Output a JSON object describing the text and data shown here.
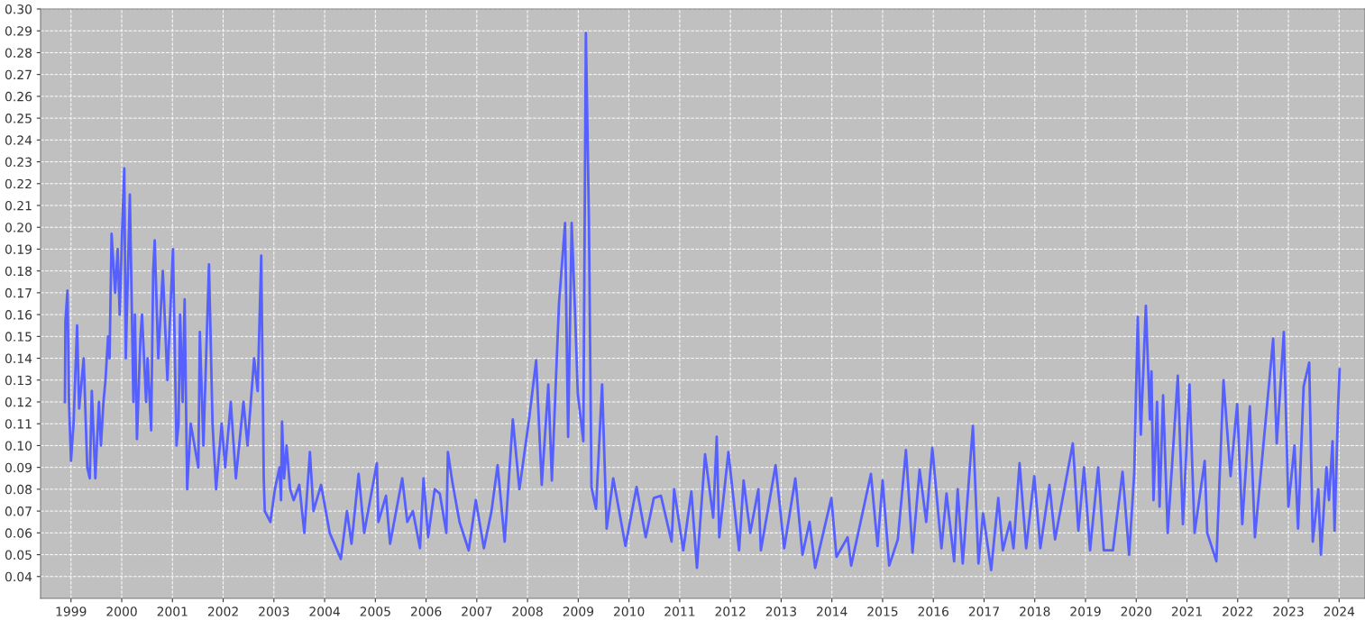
{
  "chart_data": {
    "type": "line",
    "x": [
      1998.88,
      1998.89,
      1998.93,
      1998.96,
      1999.0,
      1999.05,
      1999.12,
      1999.16,
      1999.25,
      1999.32,
      1999.37,
      1999.41,
      1999.48,
      1999.55,
      1999.59,
      1999.64,
      1999.68,
      1999.73,
      1999.76,
      1999.8,
      1999.87,
      1999.92,
      1999.96,
      2000.01,
      2000.05,
      2000.08,
      2000.16,
      2000.23,
      2000.26,
      2000.3,
      2000.37,
      2000.4,
      2000.48,
      2000.51,
      2000.58,
      2000.62,
      2000.65,
      2000.72,
      2000.81,
      2000.9,
      2001.01,
      2001.08,
      2001.12,
      2001.15,
      2001.2,
      2001.24,
      2001.29,
      2001.36,
      2001.51,
      2001.54,
      2001.61,
      2001.72,
      2001.79,
      2001.86,
      2001.97,
      2002.04,
      2002.15,
      2002.25,
      2002.4,
      2002.48,
      2002.61,
      2002.68,
      2002.75,
      2002.8,
      2002.82,
      2002.93,
      2003.02,
      2003.11,
      2003.14,
      2003.16,
      2003.2,
      2003.25,
      2003.32,
      2003.39,
      2003.5,
      2003.6,
      2003.71,
      2003.78,
      2003.93,
      2004.1,
      2004.32,
      2004.44,
      2004.53,
      2004.67,
      2004.78,
      2005.03,
      2005.06,
      2005.21,
      2005.29,
      2005.53,
      2005.63,
      2005.74,
      2005.88,
      2005.95,
      2006.04,
      2006.17,
      2006.27,
      2006.4,
      2006.43,
      2006.52,
      2006.66,
      2006.84,
      2006.98,
      2007.14,
      2007.29,
      2007.41,
      2007.55,
      2007.71,
      2007.84,
      2008.03,
      2008.17,
      2008.28,
      2008.41,
      2008.48,
      2008.62,
      2008.74,
      2008.8,
      2008.87,
      2008.94,
      2008.99,
      2009.1,
      2009.15,
      2009.21,
      2009.26,
      2009.35,
      2009.47,
      2009.56,
      2009.69,
      2009.93,
      2010.15,
      2010.33,
      2010.49,
      2010.63,
      2010.84,
      2010.89,
      2011.07,
      2011.23,
      2011.34,
      2011.5,
      2011.66,
      2011.73,
      2011.78,
      2011.96,
      2012.17,
      2012.26,
      2012.39,
      2012.55,
      2012.6,
      2012.89,
      2013.06,
      2013.28,
      2013.42,
      2013.56,
      2013.67,
      2013.99,
      2014.09,
      2014.31,
      2014.38,
      2014.77,
      2014.9,
      2015.0,
      2015.13,
      2015.3,
      2015.46,
      2015.59,
      2015.73,
      2015.86,
      2015.98,
      2016.16,
      2016.26,
      2016.41,
      2016.48,
      2016.58,
      2016.78,
      2016.89,
      2016.98,
      2017.14,
      2017.28,
      2017.37,
      2017.51,
      2017.58,
      2017.7,
      2017.83,
      2017.99,
      2018.11,
      2018.29,
      2018.4,
      2018.75,
      2018.86,
      2018.97,
      2019.09,
      2019.25,
      2019.36,
      2019.54,
      2019.73,
      2019.86,
      2019.96,
      2020.03,
      2020.09,
      2020.19,
      2020.27,
      2020.3,
      2020.34,
      2020.41,
      2020.46,
      2020.53,
      2020.62,
      2020.82,
      2020.92,
      2021.05,
      2021.15,
      2021.35,
      2021.4,
      2021.58,
      2021.72,
      2021.86,
      2021.99,
      2022.09,
      2022.24,
      2022.34,
      2022.7,
      2022.77,
      2022.91,
      2023.0,
      2023.12,
      2023.19,
      2023.3,
      2023.41,
      2023.48,
      2023.59,
      2023.64,
      2023.75,
      2023.8,
      2023.87,
      2023.91,
      2023.98,
      2024.01
    ],
    "series": [
      {
        "color": "#5560ff",
        "values": [
          0.12,
          0.157,
          0.171,
          0.12,
          0.093,
          0.11,
          0.155,
          0.117,
          0.14,
          0.09,
          0.085,
          0.125,
          0.085,
          0.12,
          0.1,
          0.12,
          0.13,
          0.15,
          0.14,
          0.197,
          0.17,
          0.19,
          0.16,
          0.2,
          0.227,
          0.14,
          0.215,
          0.12,
          0.16,
          0.103,
          0.15,
          0.16,
          0.12,
          0.14,
          0.107,
          0.18,
          0.194,
          0.14,
          0.18,
          0.13,
          0.19,
          0.1,
          0.11,
          0.16,
          0.12,
          0.167,
          0.08,
          0.11,
          0.09,
          0.152,
          0.1,
          0.183,
          0.11,
          0.08,
          0.11,
          0.09,
          0.12,
          0.085,
          0.12,
          0.1,
          0.14,
          0.125,
          0.187,
          0.085,
          0.07,
          0.065,
          0.08,
          0.09,
          0.075,
          0.111,
          0.085,
          0.1,
          0.08,
          0.075,
          0.082,
          0.06,
          0.097,
          0.07,
          0.082,
          0.06,
          0.048,
          0.07,
          0.055,
          0.087,
          0.06,
          0.092,
          0.065,
          0.077,
          0.055,
          0.085,
          0.065,
          0.07,
          0.053,
          0.085,
          0.058,
          0.08,
          0.078,
          0.06,
          0.097,
          0.083,
          0.065,
          0.052,
          0.075,
          0.053,
          0.07,
          0.091,
          0.056,
          0.112,
          0.08,
          0.112,
          0.139,
          0.082,
          0.128,
          0.084,
          0.165,
          0.202,
          0.104,
          0.202,
          0.159,
          0.124,
          0.102,
          0.289,
          0.204,
          0.081,
          0.071,
          0.128,
          0.062,
          0.085,
          0.054,
          0.081,
          0.058,
          0.076,
          0.077,
          0.056,
          0.08,
          0.052,
          0.079,
          0.044,
          0.096,
          0.067,
          0.104,
          0.058,
          0.097,
          0.052,
          0.084,
          0.06,
          0.08,
          0.052,
          0.091,
          0.053,
          0.085,
          0.05,
          0.065,
          0.044,
          0.076,
          0.049,
          0.058,
          0.045,
          0.087,
          0.054,
          0.084,
          0.045,
          0.057,
          0.098,
          0.051,
          0.089,
          0.065,
          0.099,
          0.053,
          0.078,
          0.047,
          0.08,
          0.046,
          0.109,
          0.046,
          0.069,
          0.043,
          0.076,
          0.052,
          0.065,
          0.053,
          0.092,
          0.053,
          0.086,
          0.053,
          0.082,
          0.057,
          0.101,
          0.061,
          0.09,
          0.052,
          0.09,
          0.052,
          0.052,
          0.088,
          0.05,
          0.087,
          0.159,
          0.105,
          0.164,
          0.112,
          0.134,
          0.075,
          0.12,
          0.072,
          0.123,
          0.06,
          0.132,
          0.064,
          0.128,
          0.06,
          0.093,
          0.06,
          0.047,
          0.13,
          0.086,
          0.119,
          0.064,
          0.118,
          0.058,
          0.149,
          0.101,
          0.152,
          0.072,
          0.1,
          0.062,
          0.127,
          0.138,
          0.056,
          0.08,
          0.05,
          0.09,
          0.075,
          0.102,
          0.061,
          0.118,
          0.135
        ]
      }
    ],
    "xlim": [
      1998.4,
      2024.51
    ],
    "xticks": [
      1999,
      2000,
      2001,
      2002,
      2003,
      2004,
      2005,
      2006,
      2007,
      2008,
      2009,
      2010,
      2011,
      2012,
      2013,
      2014,
      2015,
      2016,
      2017,
      2018,
      2019,
      2020,
      2021,
      2022,
      2023,
      2024
    ],
    "ylim": [
      0.03,
      0.3
    ],
    "yticks": [
      0.04,
      0.05,
      0.06,
      0.07,
      0.08,
      0.09,
      {
        "value": 0.1,
        "label": "0.10"
      },
      0.11,
      0.12,
      0.13,
      0.14,
      0.15,
      0.16,
      0.17,
      0.18,
      0.19,
      {
        "value": 0.2,
        "label": "0.20"
      },
      0.21,
      0.22,
      0.23,
      0.24,
      0.25,
      0.26,
      0.27,
      0.28,
      0.29,
      {
        "value": 0.3,
        "label": "0.30"
      }
    ],
    "grid": true,
    "line_style": "solid",
    "marker": "none"
  }
}
